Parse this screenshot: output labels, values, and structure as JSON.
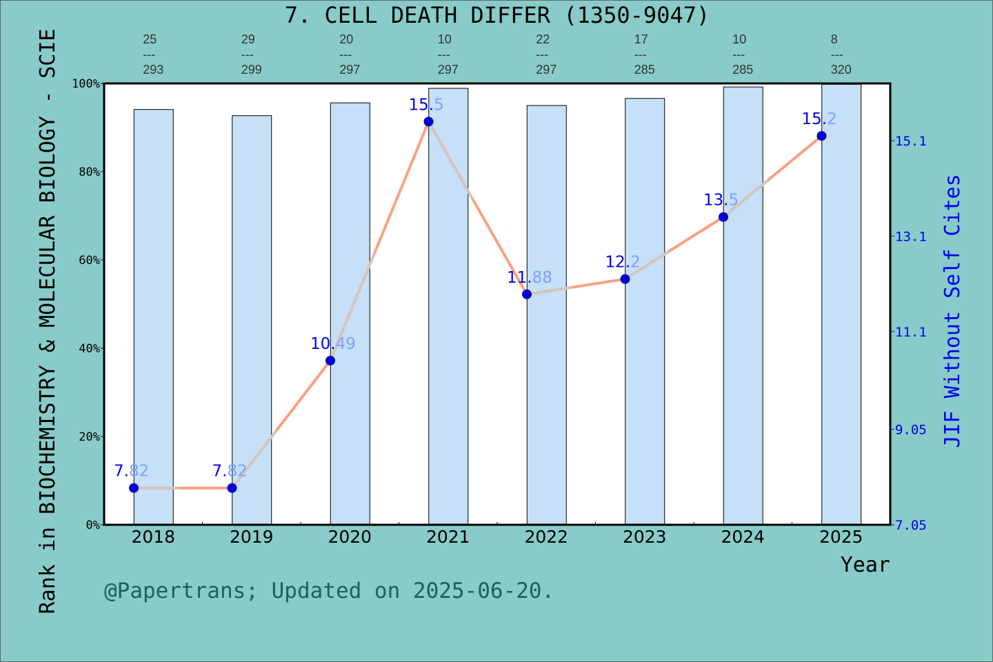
{
  "chart_data": {
    "type": "bar+line",
    "title": "7. CELL DEATH DIFFER (1350-9047)",
    "xlabel": "Year",
    "ylabel": "Rank in BIOCHEMISTRY & MOLECULAR BIOLOGY - SCIE",
    "y2label": "JIF Without Self Cites",
    "categories": [
      "2018",
      "2019",
      "2020",
      "2021",
      "2022",
      "2023",
      "2024",
      "2025"
    ],
    "bar_percentile": [
      94.1,
      92.7,
      95.6,
      98.9,
      95.0,
      96.6,
      99.2,
      99.8
    ],
    "ranks": [
      {
        "rank": "25",
        "total": "293"
      },
      {
        "rank": "29",
        "total": "299"
      },
      {
        "rank": "20",
        "total": "297"
      },
      {
        "rank": "10",
        "total": "297"
      },
      {
        "rank": "22",
        "total": "297"
      },
      {
        "rank": "17",
        "total": "285"
      },
      {
        "rank": "10",
        "total": "285"
      },
      {
        "rank": "8",
        "total": "320"
      }
    ],
    "rank_separator": "---",
    "jif": [
      7.82,
      7.82,
      10.49,
      15.5,
      11.88,
      12.2,
      13.5,
      15.2
    ],
    "jif_labels": [
      [
        "7.",
        "82"
      ],
      [
        "7.",
        "82"
      ],
      [
        "10.",
        "49"
      ],
      [
        "15.",
        "5"
      ],
      [
        "11.",
        "88"
      ],
      [
        "12.",
        "2"
      ],
      [
        "13.",
        "5"
      ],
      [
        "15.",
        "2"
      ]
    ],
    "ylim": [
      0,
      100
    ],
    "yticks": [
      "0%",
      "20%",
      "40%",
      "60%",
      "80%",
      "100%"
    ],
    "y2lim": [
      7.05,
      16.3
    ],
    "y2ticks": [
      "7.05",
      "9.05",
      "11.1",
      "13.1",
      "15.1"
    ],
    "y2tick_values": [
      7.05,
      9.05,
      11.1,
      13.1,
      15.1
    ],
    "colors": {
      "bar": "#c5e0f7",
      "line": "#ff9f7f",
      "point": "#0000cc",
      "label_a": "#0000ee",
      "label_b": "#7f9fff",
      "background": "#88cbc9"
    }
  },
  "footer": "@Papertrans; Updated on 2025-06-20."
}
